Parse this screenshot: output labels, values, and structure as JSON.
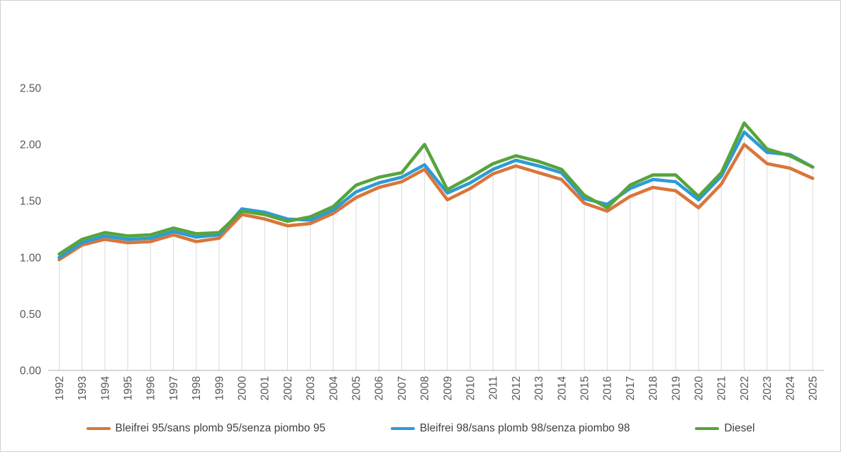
{
  "chart_data": {
    "type": "line",
    "title": "",
    "x_label": "",
    "y_label": "",
    "categories": [
      "1992",
      "1993",
      "1994",
      "1995",
      "1996",
      "1997",
      "1998",
      "1999",
      "2000",
      "2001",
      "2002",
      "2003",
      "2004",
      "2005",
      "2006",
      "2007",
      "2008",
      "2009",
      "2010",
      "2011",
      "2012",
      "2013",
      "2014",
      "2015",
      "2016",
      "2017",
      "2018",
      "2019",
      "2020",
      "2021",
      "2022",
      "2023",
      "2024",
      "2025"
    ],
    "series": [
      {
        "name": "Bleifrei 95/sans plomb 95/senza piombo 95",
        "color": "#D9763A",
        "values": [
          0.98,
          1.11,
          1.16,
          1.13,
          1.14,
          1.2,
          1.14,
          1.17,
          1.38,
          1.34,
          1.28,
          1.3,
          1.39,
          1.53,
          1.62,
          1.67,
          1.78,
          1.51,
          1.61,
          1.74,
          1.81,
          1.75,
          1.69,
          1.48,
          1.41,
          1.54,
          1.62,
          1.59,
          1.44,
          1.65,
          2.0,
          1.83,
          1.79,
          1.7
        ]
      },
      {
        "name": "Bleifrei 98/sans plomb 98/senza piombo 98",
        "color": "#2D9BD5",
        "values": [
          1.0,
          1.13,
          1.19,
          1.16,
          1.17,
          1.23,
          1.18,
          1.2,
          1.43,
          1.4,
          1.34,
          1.33,
          1.42,
          1.58,
          1.66,
          1.71,
          1.82,
          1.57,
          1.66,
          1.78,
          1.86,
          1.81,
          1.75,
          1.52,
          1.47,
          1.61,
          1.69,
          1.67,
          1.51,
          1.72,
          2.11,
          1.93,
          1.91,
          1.8
        ]
      },
      {
        "name": "Diesel",
        "color": "#57A43C",
        "values": [
          1.03,
          1.16,
          1.22,
          1.19,
          1.2,
          1.26,
          1.21,
          1.22,
          1.41,
          1.38,
          1.32,
          1.36,
          1.45,
          1.64,
          1.71,
          1.75,
          2.0,
          1.6,
          1.71,
          1.83,
          1.9,
          1.85,
          1.78,
          1.55,
          1.44,
          1.64,
          1.73,
          1.73,
          1.54,
          1.75,
          2.19,
          1.96,
          1.9,
          1.8
        ]
      }
    ],
    "ylim": [
      0,
      2.5
    ],
    "yticks": [
      0,
      0.5,
      1,
      1.5,
      2,
      2.5
    ],
    "ytick_labels": [
      "0.00",
      "0.50",
      "1.00",
      "1.50",
      "2.00",
      "2.50"
    ],
    "grid": "off",
    "droplines": true,
    "legend_position": "bottom",
    "style": {
      "axis_line_color": "#BFBFBF",
      "dropline_color": "#D9D9D9",
      "tick_label_color": "#595959",
      "legend_text_color": "#3F3F3F",
      "background": "#FFFFFF",
      "line_width": 4.6
    }
  }
}
